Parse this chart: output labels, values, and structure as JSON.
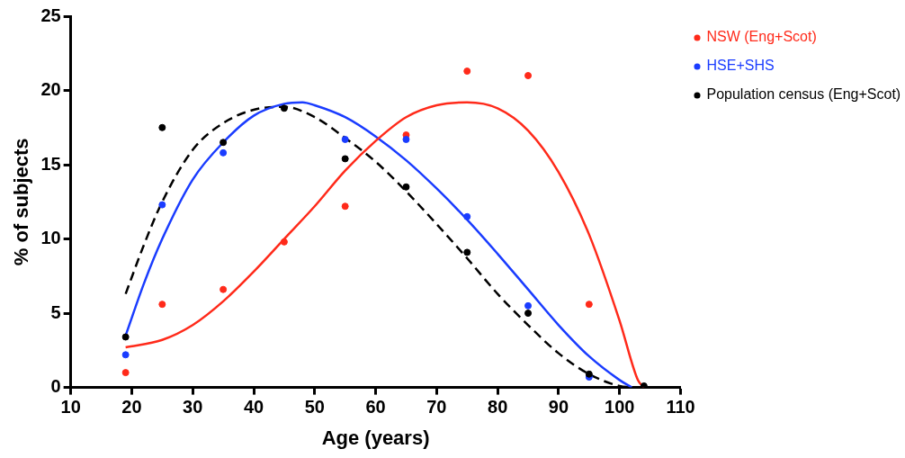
{
  "chart_data": {
    "type": "scatter",
    "xlabel": "Age (years)",
    "ylabel": "% of subjects",
    "xlim": [
      10,
      110
    ],
    "xticks": [
      10,
      20,
      30,
      40,
      50,
      60,
      70,
      80,
      90,
      100,
      110
    ],
    "ylim": [
      0,
      25
    ],
    "yticks": [
      0,
      5,
      10,
      15,
      20,
      25
    ],
    "grid": false,
    "legend": "top right",
    "marker": "circle",
    "series": [
      {
        "name": "NSW (Eng+Scot)",
        "color": "#ff2a1a",
        "x": [
          19,
          25,
          35,
          45,
          55,
          65,
          75,
          85,
          95
        ],
        "values": [
          1.0,
          5.6,
          6.6,
          9.8,
          12.2,
          17.0,
          21.3,
          21.0,
          5.6
        ]
      },
      {
        "name": "HSE+SHS",
        "color": "#1a3cff",
        "x": [
          19,
          25,
          35,
          45,
          55,
          65,
          75,
          85,
          95
        ],
        "values": [
          2.2,
          12.3,
          15.8,
          null,
          16.7,
          16.7,
          11.5,
          5.5,
          0.7
        ]
      },
      {
        "name": "Population census (Eng+Scot)",
        "color": "#000000",
        "x": [
          19,
          25,
          35,
          45,
          55,
          65,
          75,
          85,
          95,
          104
        ],
        "values": [
          3.4,
          17.5,
          16.5,
          18.8,
          15.4,
          13.5,
          9.1,
          5.0,
          0.9,
          0.1
        ]
      },
      {
        "type": "line",
        "color": "#ff2a1a",
        "marker": "none",
        "line_style": "solid",
        "x": [
          19,
          25,
          30,
          35,
          40,
          45,
          50,
          55,
          60,
          65,
          70,
          75,
          80,
          85,
          90,
          95,
          100,
          103,
          104
        ],
        "values": [
          2.7,
          3.2,
          4.2,
          5.8,
          7.8,
          10.0,
          12.2,
          14.6,
          16.6,
          18.2,
          19.0,
          19.2,
          18.8,
          17.3,
          14.5,
          10.3,
          4.5,
          0.5,
          0
        ]
      },
      {
        "type": "line",
        "color": "#1a3cff",
        "marker": "none",
        "line_style": "solid",
        "x": [
          19,
          22,
          25,
          30,
          35,
          40,
          45,
          48,
          50,
          55,
          60,
          65,
          70,
          75,
          80,
          85,
          90,
          95,
          100,
          102
        ],
        "values": [
          3.5,
          7.0,
          10.0,
          14.0,
          16.5,
          18.3,
          19.1,
          19.2,
          19.0,
          18.2,
          16.9,
          15.3,
          13.4,
          11.3,
          9.0,
          6.6,
          4.2,
          2.1,
          0.5,
          0
        ]
      },
      {
        "type": "line",
        "color": "#000000",
        "marker": "none",
        "line_style": "dashed",
        "x": [
          19,
          22,
          25,
          30,
          35,
          40,
          45,
          50,
          55,
          60,
          65,
          70,
          75,
          80,
          85,
          90,
          95,
          100,
          103
        ],
        "values": [
          6.3,
          9.6,
          12.5,
          16.0,
          17.8,
          18.7,
          18.9,
          18.2,
          16.8,
          15.2,
          13.2,
          11.0,
          8.7,
          6.3,
          4.2,
          2.3,
          0.9,
          0.1,
          0
        ]
      }
    ]
  }
}
